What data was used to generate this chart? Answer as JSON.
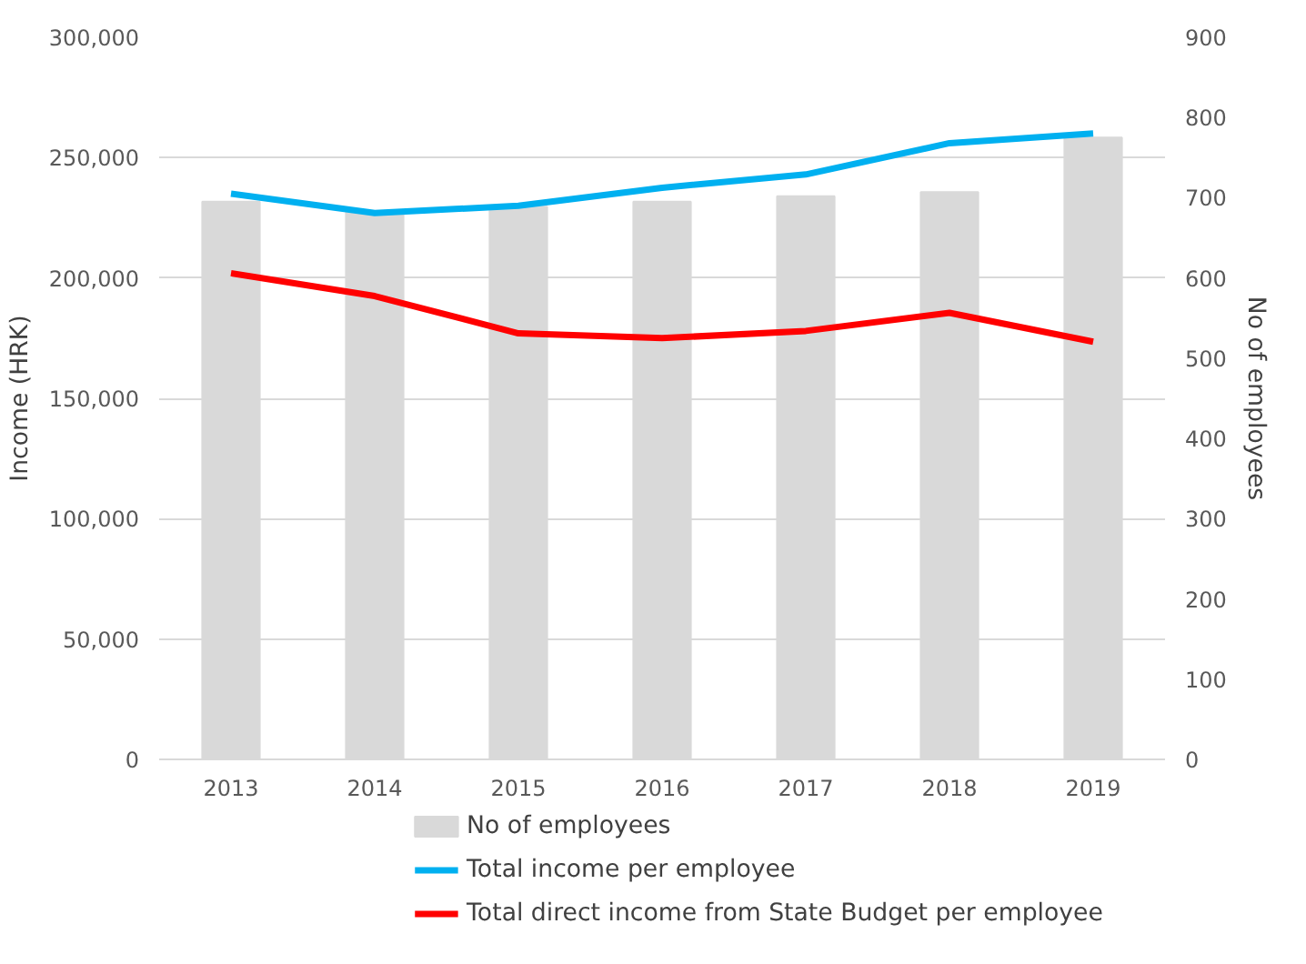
{
  "chart_data": {
    "type": "bar",
    "categories": [
      "2013",
      "2014",
      "2015",
      "2016",
      "2017",
      "2018",
      "2019"
    ],
    "ylabel": "Income (HRK)",
    "y2label": "No of employees",
    "ylim": [
      0,
      300000
    ],
    "yticks": [
      {
        "value": 0,
        "label": "0"
      },
      {
        "value": 50000,
        "label": "50,000"
      },
      {
        "value": 100000,
        "label": "100,000"
      },
      {
        "value": 150000,
        "label": "150,000"
      },
      {
        "value": 200000,
        "label": "200,000"
      },
      {
        "value": 250000,
        "label": "250,000"
      },
      {
        "value": 300000,
        "label": "300,000"
      }
    ],
    "y2lim": [
      0,
      900
    ],
    "y2ticks": [
      0,
      100,
      200,
      300,
      400,
      500,
      600,
      700,
      800,
      900
    ],
    "grid": "y",
    "legend": "bottom",
    "series": [
      {
        "name": "No of employees",
        "axis": "y2",
        "color": "#d9d9d9",
        "values": [
          695,
          683,
          689,
          695,
          702,
          707,
          775
        ]
      },
      {
        "name": "Total income per employee",
        "type": "line",
        "color": "#00b0f0",
        "values": [
          235000,
          227000,
          230000,
          237500,
          243000,
          256000,
          260000
        ]
      },
      {
        "name": "Total direct income from State Budget per employee",
        "type": "line",
        "color": "#ff0000",
        "values": [
          202000,
          192500,
          177000,
          175000,
          178000,
          185500,
          173500
        ]
      }
    ]
  }
}
